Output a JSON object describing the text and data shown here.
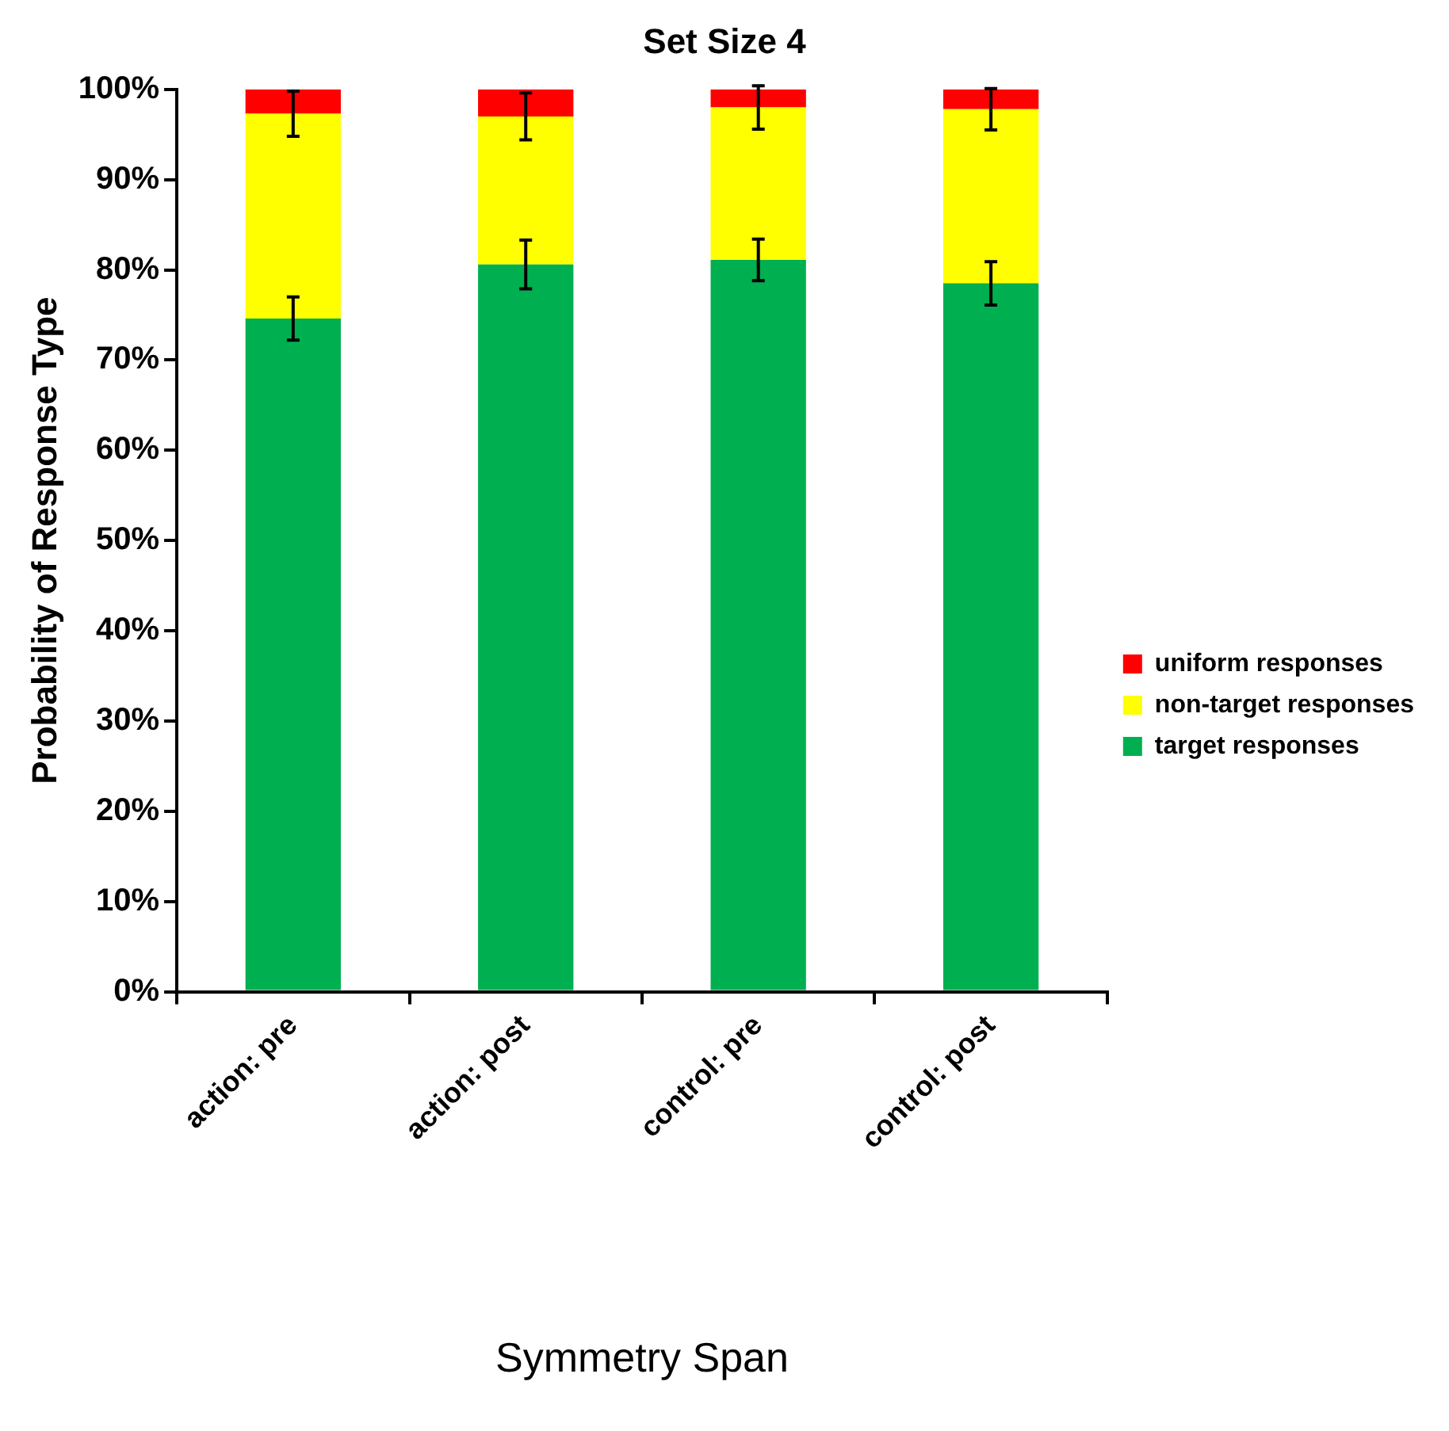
{
  "chart_data": {
    "type": "bar",
    "title": "Set Size 4",
    "xlabel": "Symmetry Span",
    "ylabel": "Probability of Response Type",
    "categories": [
      "action: pre",
      "action: post",
      "control: pre",
      "control: post"
    ],
    "stacked": true,
    "legend": "right",
    "grid": false,
    "ylim": [
      0,
      100
    ],
    "yticks": [
      {
        "value": 0,
        "label": "0%"
      },
      {
        "value": 10,
        "label": "10%"
      },
      {
        "value": 20,
        "label": "20%"
      },
      {
        "value": 30,
        "label": "30%"
      },
      {
        "value": 40,
        "label": "40%"
      },
      {
        "value": 50,
        "label": "50%"
      },
      {
        "value": 60,
        "label": "60%"
      },
      {
        "value": 70,
        "label": "70%"
      },
      {
        "value": 80,
        "label": "80%"
      },
      {
        "value": 90,
        "label": "90%"
      },
      {
        "value": 100,
        "label": "100%"
      }
    ],
    "series": [
      {
        "name": "target responses",
        "color": "#00b050",
        "values": [
          74.6,
          80.6,
          81.1,
          78.5
        ],
        "errors": [
          2.4,
          2.7,
          2.3,
          2.4
        ]
      },
      {
        "name": "non-target responses",
        "color": "#ffff00",
        "values": [
          22.7,
          16.4,
          16.9,
          19.3
        ],
        "errors": [
          2.5,
          2.6,
          2.4,
          2.3
        ]
      },
      {
        "name": "uniform responses",
        "color": "#ff0000",
        "values": [
          2.7,
          3.0,
          2.0,
          2.2
        ]
      }
    ]
  }
}
